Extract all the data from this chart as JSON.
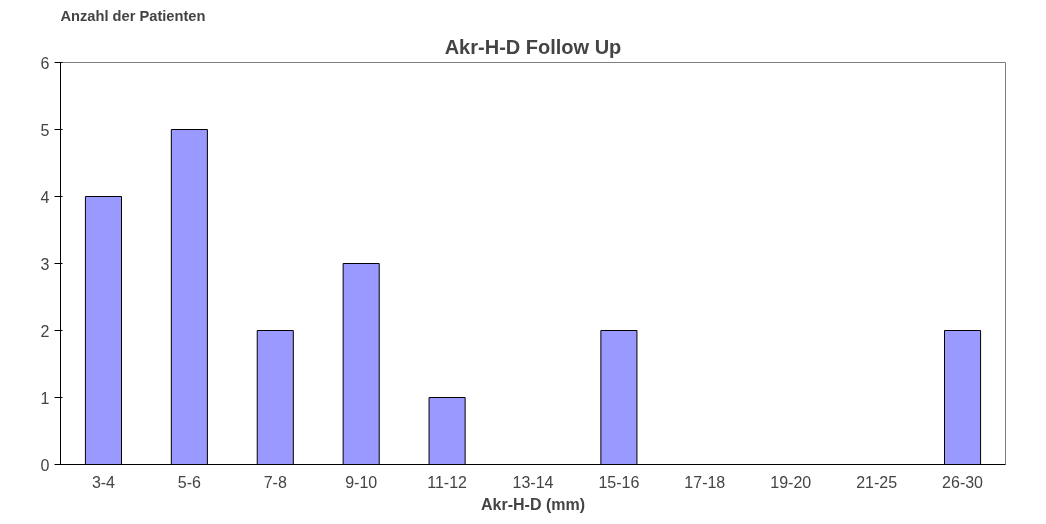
{
  "chart_data": {
    "type": "bar",
    "title": "Akr-H-D Follow Up",
    "xlabel": "Akr-H-D (mm)",
    "ylabel": "Anzahl der Patienten",
    "categories": [
      "3-4",
      "5-6",
      "7-8",
      "9-10",
      "11-12",
      "13-14",
      "15-16",
      "17-18",
      "19-20",
      "21-25",
      "26-30"
    ],
    "values": [
      4,
      5,
      2,
      3,
      1,
      0,
      2,
      0,
      0,
      0,
      2
    ],
    "color": "#9999ff",
    "ylim": [
      0,
      6
    ],
    "yticks": [
      0,
      1,
      2,
      3,
      4,
      5,
      6
    ],
    "grid": false
  }
}
